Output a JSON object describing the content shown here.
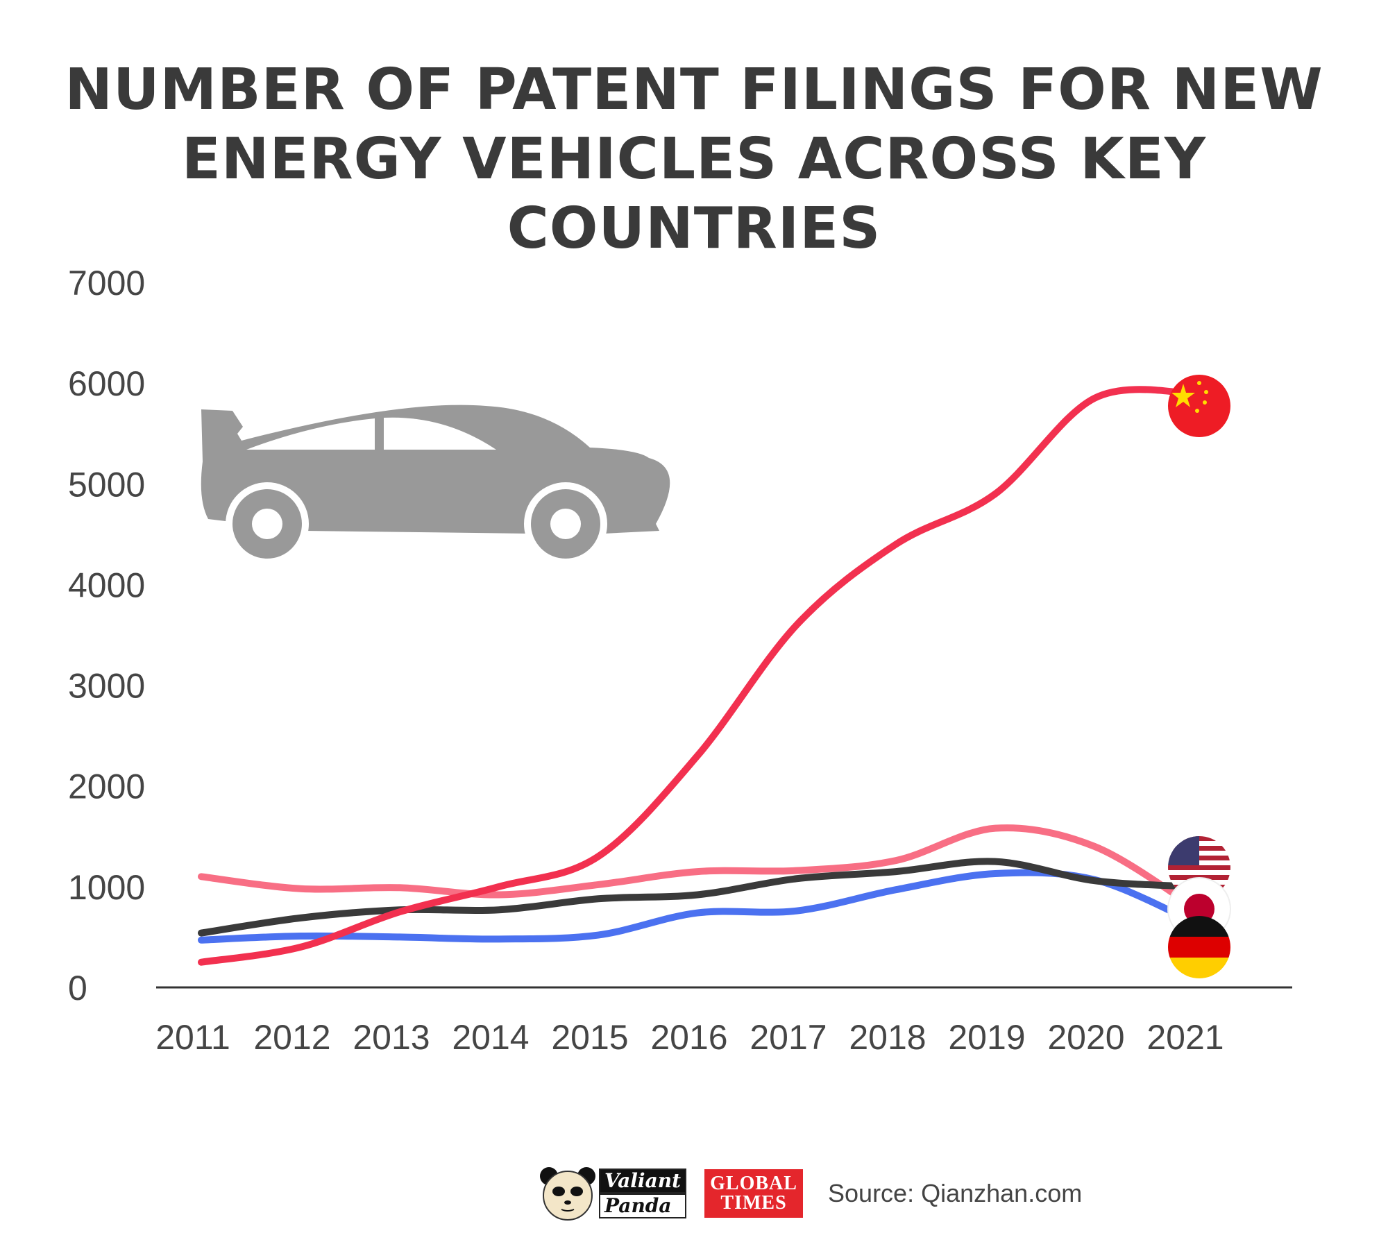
{
  "title_line1": "NUMBER OF PATENT FILINGS FOR NEW",
  "title_line2": "ENERGY VEHICLES ACROSS KEY COUNTRIES",
  "chart_data": {
    "type": "line",
    "title": "NUMBER OF PATENT FILINGS FOR NEW ENERGY VEHICLES ACROSS KEY COUNTRIES",
    "xlabel": "",
    "ylabel": "",
    "x": [
      2011,
      2012,
      2013,
      2014,
      2015,
      2016,
      2017,
      2018,
      2019,
      2020,
      2021
    ],
    "ylim": [
      0,
      7000
    ],
    "yticks": [
      0,
      1000,
      2000,
      3000,
      4000,
      5000,
      6000,
      7000
    ],
    "grid": false,
    "series": [
      {
        "name": "China",
        "color": "#f2304f",
        "values": [
          250,
          400,
          750,
          1000,
          1300,
          2300,
          3600,
          4400,
          4900,
          5850,
          5900
        ]
      },
      {
        "name": "Japan",
        "color": "#f86e84",
        "values": [
          1100,
          980,
          990,
          920,
          1020,
          1150,
          1160,
          1260,
          1580,
          1400,
          800
        ]
      },
      {
        "name": "Germany",
        "color": "#3a3a3a",
        "values": [
          540,
          690,
          770,
          770,
          880,
          920,
          1080,
          1150,
          1250,
          1060,
          1000
        ]
      },
      {
        "name": "United States",
        "color": "#4b71f0",
        "values": [
          470,
          510,
          500,
          480,
          520,
          740,
          760,
          970,
          1130,
          1070,
          650
        ]
      }
    ],
    "legend": "flag markers at line ends (right)"
  },
  "footer": {
    "panda_word1": "Valiant",
    "panda_word2": "Panda",
    "gt_word1": "GLOBAL",
    "gt_word2": "TIMES",
    "source": "Source: Qianzhan.com"
  },
  "icons": [
    "car-icon",
    "china-flag-icon",
    "usa-flag-icon",
    "japan-flag-icon",
    "germany-flag-icon",
    "panda-icon"
  ]
}
